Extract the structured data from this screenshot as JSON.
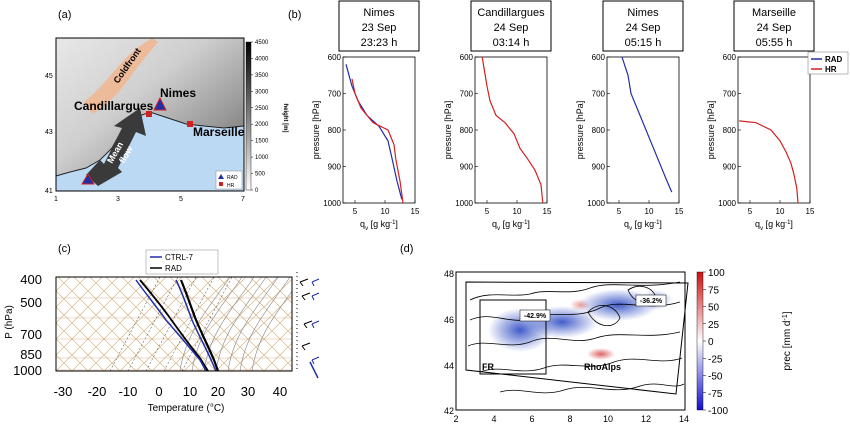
{
  "panel_labels": {
    "a": "(a)",
    "b": "(b)",
    "c": "(c)",
    "d": "(d)"
  },
  "map_a": {
    "y_ticks": [
      "45",
      "43",
      "41"
    ],
    "x_ticks": [
      "1",
      "3",
      "5",
      "7"
    ],
    "labels": {
      "coldfront": "Coldfront",
      "nimes": "Nimes",
      "candillargues": "Candillargues",
      "marseille": "Marseille",
      "mean_flow_1": "Mean",
      "mean_flow_2": "flow"
    },
    "legend": {
      "rad": "RAD",
      "hr": "HR"
    },
    "colorbar": {
      "label": "height [m]",
      "ticks": [
        "4500",
        "4000",
        "3500",
        "3000",
        "2500",
        "2000",
        "1500",
        "1000",
        "500",
        "0"
      ]
    },
    "colors": {
      "rad": "#1f2fa8",
      "hr": "#d42020",
      "sea": "#bcd9f3",
      "front": "#f3b48a"
    }
  },
  "profiles_b": {
    "y_axis_label": "pressure [hPa]",
    "x_axis_label": "q",
    "x_axis_sub": "v",
    "x_axis_unit": " [g kg",
    "x_axis_exp": "-1",
    "x_axis_close": "]",
    "y_ticks": [
      "600",
      "700",
      "800",
      "900",
      "1000"
    ],
    "legend": {
      "rad": "RAD",
      "hr": "HR"
    },
    "panels": [
      {
        "station": "Nimes",
        "date": "23 Sep",
        "time": "23:23 h",
        "x_ticks": [
          "5",
          "10",
          "15"
        ]
      },
      {
        "station": "Candillargues",
        "date": "24 Sep",
        "time": "03:14 h",
        "x_ticks": [
          "5",
          "10",
          "15"
        ]
      },
      {
        "station": "Nimes",
        "date": "24 Sep",
        "time": "05:15 h",
        "x_ticks": [
          "5",
          "10",
          "15"
        ]
      },
      {
        "station": "Marseille",
        "date": "24 Sep",
        "time": "05:55 h",
        "x_ticks": [
          "5",
          "10",
          "15"
        ]
      }
    ]
  },
  "skewt_c": {
    "y_axis_label": "P (hPa)",
    "x_axis_label": "Temperature (°C)",
    "y_ticks": [
      "400",
      "500",
      "700",
      "850",
      "1000"
    ],
    "x_ticks": [
      "-30",
      "-20",
      "-10",
      "0",
      "10",
      "20",
      "30",
      "40"
    ],
    "legend": {
      "ctrl": "CTRL-7",
      "rad": "RAD"
    }
  },
  "map_d": {
    "y_ticks": [
      "48",
      "46",
      "44",
      "42"
    ],
    "x_ticks": [
      "2",
      "4",
      "6",
      "8",
      "10",
      "12",
      "14"
    ],
    "annotations": {
      "fr_pct": "-42.9%",
      "rho_pct": "-36.2%",
      "fr": "FR",
      "rho": "RhoAlps"
    },
    "colorbar": {
      "label": "prec [mm d",
      "label_exp": "-1",
      "label_close": "]",
      "ticks": [
        "100",
        "75",
        "50",
        "25",
        "0",
        "-25",
        "-50",
        "-75",
        "-100"
      ]
    }
  },
  "chart_data": [
    {
      "type": "line",
      "title": "Nimes 23 Sep 23:23 h",
      "xlabel": "qv [g kg-1]",
      "ylabel": "pressure [hPa]",
      "xlim": [
        3,
        15
      ],
      "ylim": [
        1000,
        600
      ],
      "series": [
        {
          "name": "RAD",
          "x": [
            3.5,
            4.5,
            5.5,
            7.0,
            9.0,
            10.5,
            11.2,
            12.0,
            12.8
          ],
          "y": [
            620,
            680,
            720,
            760,
            790,
            830,
            880,
            940,
            990
          ]
        },
        {
          "name": "HR",
          "x": [
            4.5,
            5.0,
            6.0,
            8.0,
            10.5,
            11.5,
            11.8,
            12.5,
            13.0
          ],
          "y": [
            660,
            700,
            740,
            780,
            800,
            840,
            880,
            940,
            1000
          ]
        }
      ]
    },
    {
      "type": "line",
      "title": "Candillargues 24 Sep 03:14 h",
      "xlabel": "qv [g kg-1]",
      "ylabel": "pressure [hPa]",
      "xlim": [
        3,
        15
      ],
      "ylim": [
        1000,
        600
      ],
      "series": [
        {
          "name": "HR",
          "x": [
            4.2,
            4.6,
            5.0,
            5.5,
            6.5,
            8.0,
            9.5,
            10.5,
            11.8,
            13.0,
            14.0,
            14.3
          ],
          "y": [
            600,
            640,
            680,
            720,
            760,
            780,
            810,
            850,
            880,
            910,
            950,
            1000
          ]
        }
      ]
    },
    {
      "type": "line",
      "title": "Nimes 24 Sep 05:15 h",
      "xlabel": "qv [g kg-1]",
      "ylabel": "pressure [hPa]",
      "xlim": [
        3,
        15
      ],
      "ylim": [
        1000,
        600
      ],
      "series": [
        {
          "name": "RAD",
          "x": [
            5.5,
            6.5,
            7.0,
            8.5,
            10.0,
            11.5,
            13.0,
            13.8
          ],
          "y": [
            600,
            650,
            700,
            760,
            820,
            880,
            940,
            970
          ]
        }
      ]
    },
    {
      "type": "line",
      "title": "Marseille 24 Sep 05:55 h",
      "xlabel": "qv [g kg-1]",
      "ylabel": "pressure [hPa]",
      "xlim": [
        3,
        15
      ],
      "ylim": [
        1000,
        600
      ],
      "series": [
        {
          "name": "HR",
          "x": [
            3.2,
            6.0,
            8.5,
            10.0,
            11.0,
            11.8,
            12.3,
            12.8,
            13.0
          ],
          "y": [
            775,
            780,
            800,
            830,
            860,
            890,
            920,
            960,
            1000
          ]
        }
      ]
    }
  ]
}
